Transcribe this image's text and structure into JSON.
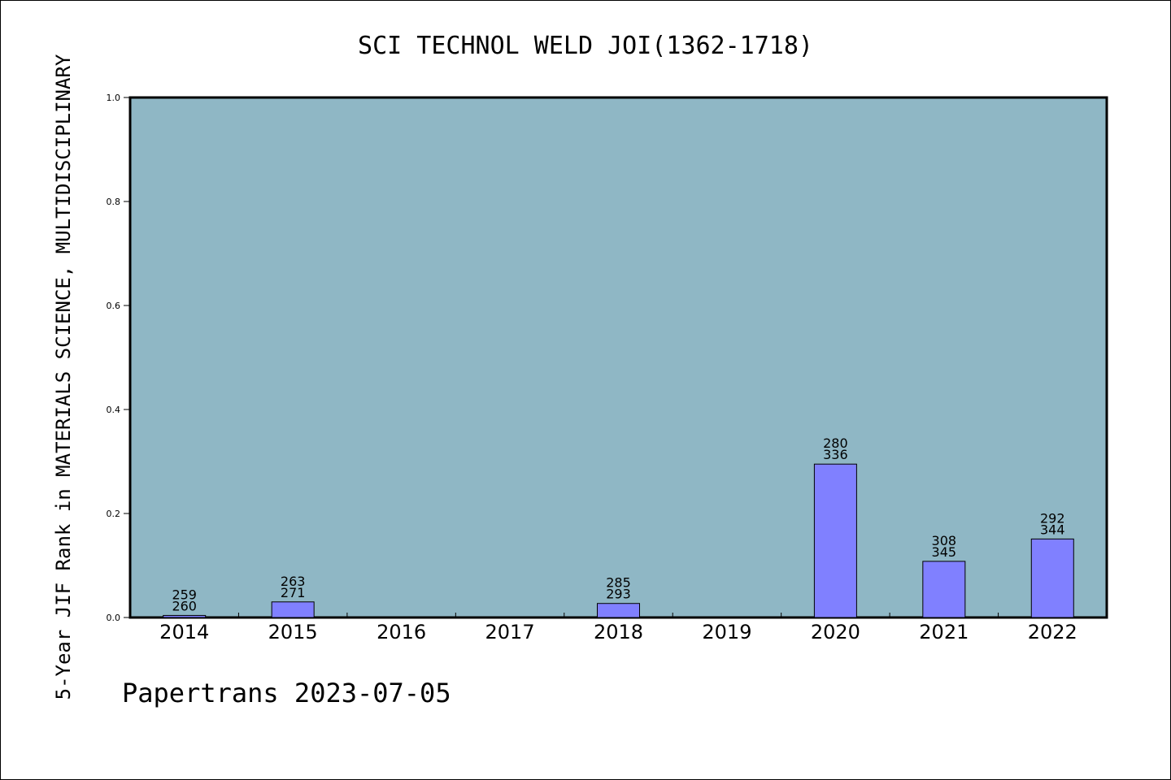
{
  "chart_data": {
    "type": "bar",
    "title": "SCI TECHNOL WELD JOI(1362-1718)",
    "ylabel": "5-Year JIF Rank in MATERIALS SCIENCE, MULTIDISCIPLINARY",
    "xlabel": "",
    "ylim": [
      0.0,
      1.0
    ],
    "yticks": [
      "0.0",
      "0.2",
      "0.4",
      "0.6",
      "0.8",
      "1.0"
    ],
    "categories": [
      "2014",
      "2015",
      "2016",
      "2017",
      "2018",
      "2019",
      "2020",
      "2021",
      "2022"
    ],
    "values": [
      0.004,
      0.03,
      null,
      null,
      0.027,
      null,
      0.295,
      0.108,
      0.151
    ],
    "labels_top": [
      "259",
      "263",
      "",
      "",
      "285",
      "",
      "280",
      "308",
      "292"
    ],
    "labels_bottom": [
      "260",
      "271",
      "",
      "",
      "293",
      "",
      "336",
      "345",
      "344"
    ],
    "grid": false,
    "legend": "none",
    "colors": {
      "plot_bg": "#8fb7c5",
      "bar": "#8080ff",
      "bar_edge": "#000000"
    }
  },
  "footer": {
    "text": "Papertrans 2023-07-05"
  }
}
